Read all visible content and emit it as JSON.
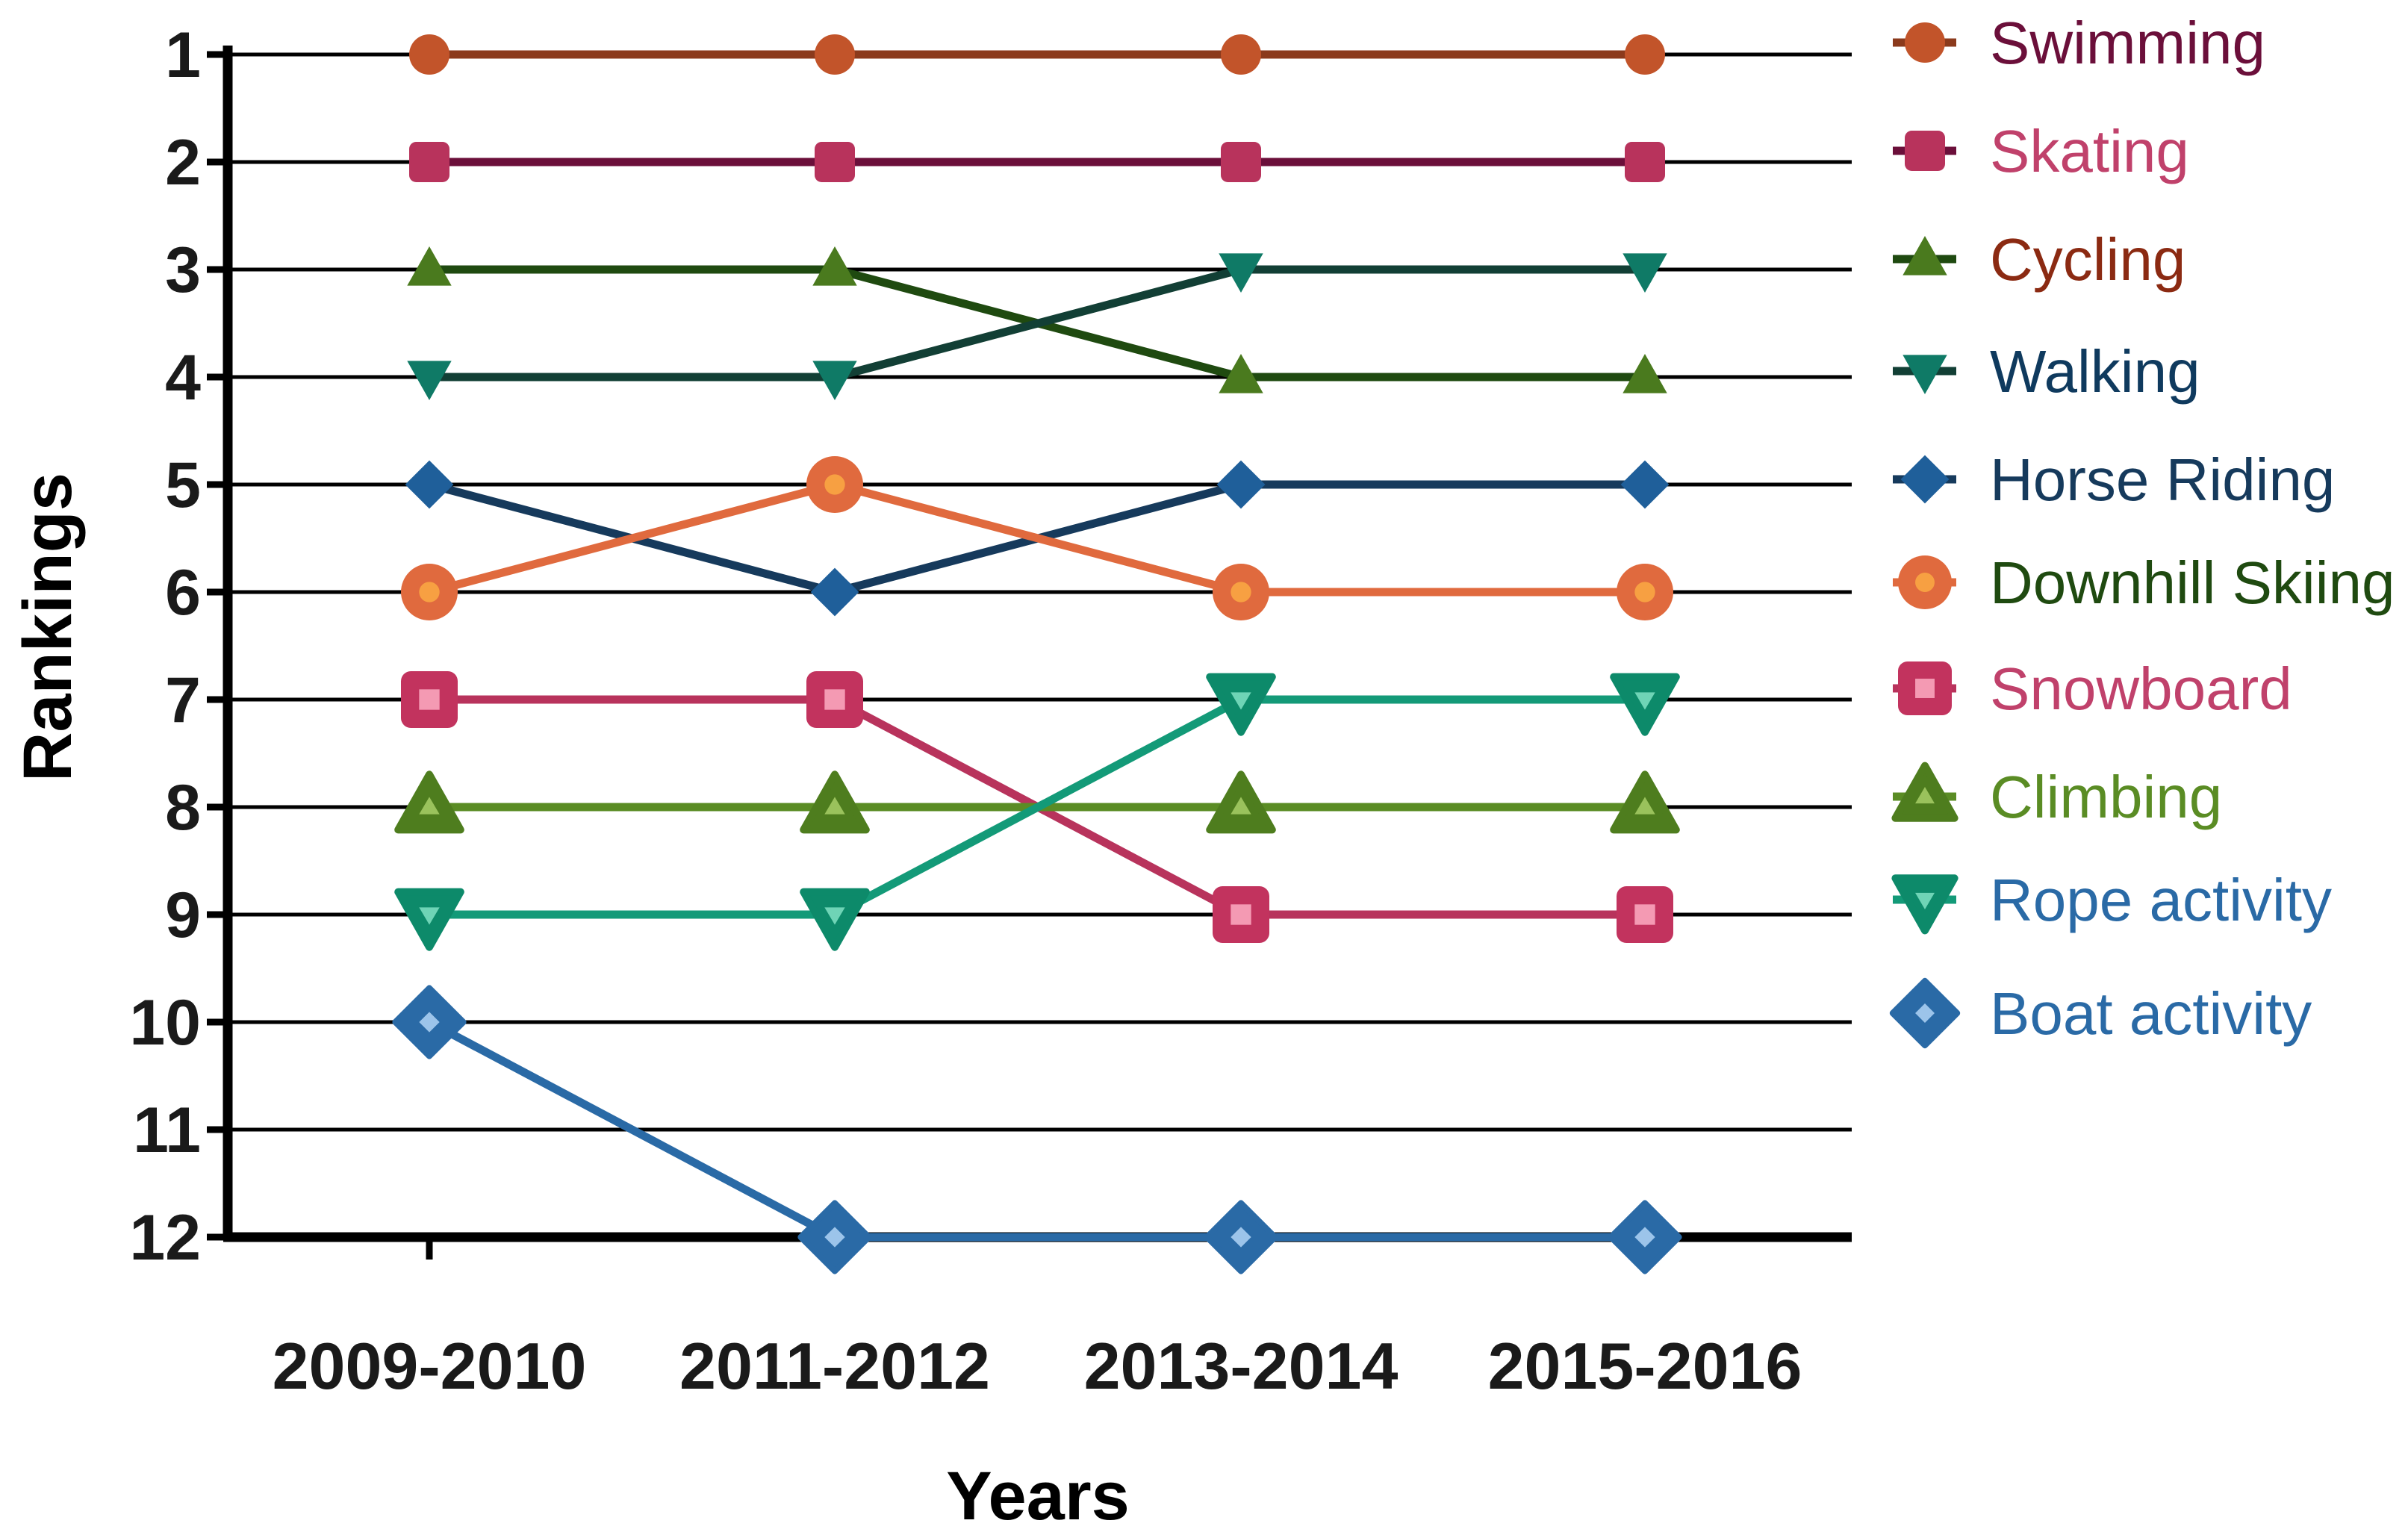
{
  "chart_data": {
    "type": "line",
    "xlabel": "Years",
    "ylabel": "Rankings",
    "categories": [
      "2009-2010",
      "2011-2012",
      "2013-2014",
      "2015-2016"
    ],
    "y_ticks": [
      1,
      2,
      3,
      4,
      5,
      6,
      7,
      8,
      9,
      10,
      11,
      12
    ],
    "ylim": [
      1,
      12
    ],
    "y_inverted": true,
    "grid": "horizontal",
    "legend_position": "right",
    "series": [
      {
        "name": "Swimming",
        "values": [
          1,
          1,
          1,
          1
        ],
        "line_color": "#8b3a1c",
        "marker": "circle",
        "marker_color": "#c2542a",
        "label_color": "#6b0f3a",
        "marker_size": "small"
      },
      {
        "name": "Skating",
        "values": [
          2,
          2,
          2,
          2
        ],
        "line_color": "#6b0f3a",
        "marker": "square",
        "marker_color": "#b8335c",
        "label_color": "#c0416b",
        "marker_size": "small"
      },
      {
        "name": "Cycling",
        "values": [
          3,
          3,
          4,
          4
        ],
        "line_color": "#1f4a10",
        "marker": "triangle-up",
        "marker_color": "#4a7a1e",
        "label_color": "#8b2a12",
        "marker_size": "small"
      },
      {
        "name": "Walking",
        "values": [
          4,
          4,
          3,
          3
        ],
        "line_color": "#123f35",
        "marker": "triangle-down",
        "marker_color": "#0f7a66",
        "label_color": "#0f3a5e",
        "marker_size": "small"
      },
      {
        "name": "Horse Riding",
        "values": [
          5,
          6,
          5,
          5
        ],
        "line_color": "#163a5c",
        "marker": "diamond",
        "marker_color": "#1f5f9a",
        "label_color": "#163a5c",
        "marker_size": "small"
      },
      {
        "name": "Downhill Skiing",
        "values": [
          6,
          5,
          6,
          6
        ],
        "line_color": "#e06a3e",
        "marker": "circle",
        "marker_color": "#e06a3e",
        "label_color": "#1f4a10",
        "marker_size": "large",
        "inner_color": "#f7a042"
      },
      {
        "name": "Snowboard",
        "values": [
          7,
          7,
          9,
          9
        ],
        "line_color": "#b8335c",
        "marker": "square",
        "marker_color": "#c2335e",
        "label_color": "#c0416b",
        "marker_size": "large",
        "inner_color": "#f49ab3"
      },
      {
        "name": "Climbing",
        "values": [
          8,
          8,
          8,
          8
        ],
        "line_color": "#5a8c24",
        "marker": "triangle-up",
        "marker_color": "#4e7d1e",
        "label_color": "#5a8c24",
        "marker_size": "large",
        "inner_color": "#9ac25c"
      },
      {
        "name": "Rope activity",
        "values": [
          9,
          9,
          7,
          7
        ],
        "line_color": "#139a78",
        "marker": "triangle-down",
        "marker_color": "#0d8a6a",
        "label_color": "#2a6aa6",
        "marker_size": "large",
        "inner_color": "#6fd4b6"
      },
      {
        "name": "Boat activity",
        "values": [
          10,
          12,
          12,
          12
        ],
        "line_color": "#2a6aa6",
        "marker": "diamond",
        "marker_color": "#2a6aa6",
        "label_color": "#2a6aa6",
        "marker_size": "large",
        "inner_color": "#9cc4ea"
      }
    ]
  }
}
